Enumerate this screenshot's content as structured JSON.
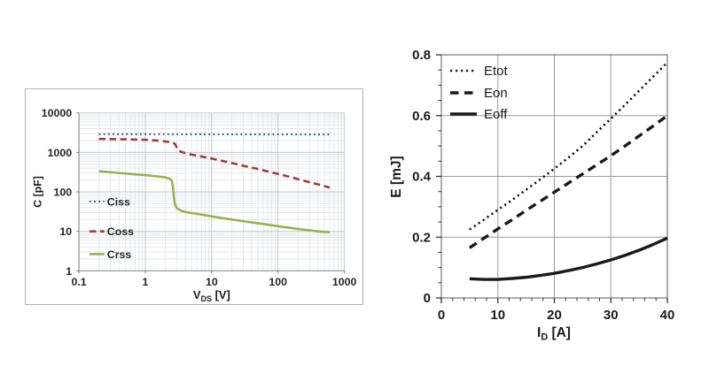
{
  "page": {
    "background": "#ffffff",
    "description": "Two device characteristic charts: parasitic capacitances vs drain-source voltage (log-log) and switching energies vs drain current (linear)"
  },
  "chart_data": [
    {
      "id": "capacitance",
      "type": "line",
      "title": "",
      "xlabel": "V_DS [V]",
      "xlabel_parts": {
        "base": "V",
        "sub": "DS",
        "unit": "[V]"
      },
      "ylabel": "C [pF]",
      "x_scale": "log",
      "y_scale": "log",
      "xlim": [
        0.1,
        1000
      ],
      "ylim": [
        1,
        10000
      ],
      "x_ticks": [
        0.1,
        1,
        10,
        100,
        1000
      ],
      "x_tick_labels": [
        "0.1",
        "1",
        "10",
        "100",
        "1000"
      ],
      "y_ticks": [
        1,
        10,
        100,
        1000,
        10000
      ],
      "y_tick_labels": [
        "1",
        "10",
        "100",
        "1000",
        "10000"
      ],
      "grid": {
        "major": true,
        "minor": true
      },
      "legend_position": "inside-left",
      "colors": {
        "ciss": "#336089",
        "coss": "#A33B38",
        "crss": "#9AAF52"
      },
      "series": [
        {
          "name": "Ciss",
          "dash": "dotted",
          "color": "#336089",
          "width": 2.2,
          "points": [
            [
              0.2,
              2900
            ],
            [
              1,
              2900
            ],
            [
              10,
              2880
            ],
            [
              100,
              2860
            ],
            [
              600,
              2840
            ]
          ]
        },
        {
          "name": "Coss",
          "dash": "dashed",
          "color": "#A33B38",
          "width": 2.6,
          "points": [
            [
              0.2,
              2200
            ],
            [
              0.5,
              2150
            ],
            [
              1,
              2080
            ],
            [
              1.5,
              2000
            ],
            [
              2,
              1900
            ],
            [
              2.5,
              1800
            ],
            [
              2.8,
              1650
            ],
            [
              3.1,
              1150
            ],
            [
              3.5,
              1030
            ],
            [
              4,
              960
            ],
            [
              5,
              880
            ],
            [
              7,
              790
            ],
            [
              10,
              700
            ],
            [
              15,
              600
            ],
            [
              20,
              540
            ],
            [
              30,
              460
            ],
            [
              50,
              380
            ],
            [
              70,
              330
            ],
            [
              100,
              285
            ],
            [
              150,
              240
            ],
            [
              200,
              210
            ],
            [
              300,
              175
            ],
            [
              400,
              155
            ],
            [
              500,
              140
            ],
            [
              600,
              128
            ]
          ]
        },
        {
          "name": "Crss",
          "dash": "solid",
          "color": "#9AAF52",
          "width": 2.6,
          "points": [
            [
              0.2,
              335
            ],
            [
              0.3,
              315
            ],
            [
              0.5,
              292
            ],
            [
              0.7,
              278
            ],
            [
              1,
              265
            ],
            [
              1.5,
              248
            ],
            [
              2,
              233
            ],
            [
              2.3,
              218
            ],
            [
              2.5,
              195
            ],
            [
              2.6,
              140
            ],
            [
              2.7,
              75
            ],
            [
              2.8,
              47
            ],
            [
              3,
              38
            ],
            [
              3.5,
              33
            ],
            [
              4,
              31
            ],
            [
              5,
              29
            ],
            [
              7,
              26.5
            ],
            [
              10,
              24
            ],
            [
              15,
              21.5
            ],
            [
              20,
              20
            ],
            [
              30,
              18
            ],
            [
              50,
              16
            ],
            [
              70,
              14.8
            ],
            [
              100,
              13.5
            ],
            [
              150,
              12.3
            ],
            [
              200,
              11.5
            ],
            [
              300,
              10.6
            ],
            [
              400,
              10
            ],
            [
              500,
              9.7
            ],
            [
              600,
              9.5
            ]
          ]
        }
      ]
    },
    {
      "id": "energy",
      "type": "line",
      "title": "",
      "xlabel": "I_D [A]",
      "xlabel_parts": {
        "base": "I",
        "sub": "D",
        "unit": "[A]"
      },
      "ylabel": "E [mJ]",
      "x_scale": "linear",
      "y_scale": "linear",
      "xlim": [
        0,
        40
      ],
      "ylim": [
        0,
        0.8
      ],
      "x_ticks": [
        0,
        10,
        20,
        30,
        40
      ],
      "x_tick_labels": [
        "0",
        "10",
        "20",
        "30",
        "40"
      ],
      "y_ticks": [
        0,
        0.2,
        0.4,
        0.6,
        0.8
      ],
      "y_tick_labels": [
        "0",
        "0.2",
        "0.4",
        "0.6",
        "0.8"
      ],
      "x_minor_step": 2,
      "y_minor_step": 0.05,
      "grid": {
        "major": true,
        "minor": false
      },
      "legend_position": "inside-top-left",
      "colors": {
        "line": "#1a1a1a",
        "grid": "#9a9a9a"
      },
      "series": [
        {
          "name": "Etot",
          "dash": "dotted",
          "color": "#1a1a1a",
          "width": 2.6,
          "points": [
            [
              5,
              0.225
            ],
            [
              7.5,
              0.257
            ],
            [
              10,
              0.29
            ],
            [
              12.5,
              0.322
            ],
            [
              15,
              0.356
            ],
            [
              17.5,
              0.39
            ],
            [
              20,
              0.425
            ],
            [
              22.5,
              0.462
            ],
            [
              25,
              0.5
            ],
            [
              27.5,
              0.545
            ],
            [
              30,
              0.59
            ],
            [
              32.5,
              0.635
            ],
            [
              35,
              0.682
            ],
            [
              37.5,
              0.728
            ],
            [
              40,
              0.775
            ]
          ]
        },
        {
          "name": "Eon",
          "dash": "dashed",
          "color": "#1a1a1a",
          "width": 3.4,
          "points": [
            [
              5,
              0.165
            ],
            [
              7.5,
              0.196
            ],
            [
              10,
              0.227
            ],
            [
              12.5,
              0.257
            ],
            [
              15,
              0.288
            ],
            [
              17.5,
              0.318
            ],
            [
              20,
              0.348
            ],
            [
              22.5,
              0.378
            ],
            [
              25,
              0.408
            ],
            [
              27.5,
              0.438
            ],
            [
              30,
              0.468
            ],
            [
              32.5,
              0.5
            ],
            [
              35,
              0.533
            ],
            [
              37.5,
              0.566
            ],
            [
              40,
              0.6
            ]
          ]
        },
        {
          "name": "Eoff",
          "dash": "solid",
          "color": "#1a1a1a",
          "width": 3.4,
          "points": [
            [
              5,
              0.063
            ],
            [
              7.5,
              0.061
            ],
            [
              10,
              0.061
            ],
            [
              12.5,
              0.064
            ],
            [
              15,
              0.068
            ],
            [
              17.5,
              0.074
            ],
            [
              20,
              0.081
            ],
            [
              22.5,
              0.09
            ],
            [
              25,
              0.1
            ],
            [
              27.5,
              0.112
            ],
            [
              30,
              0.125
            ],
            [
              32.5,
              0.14
            ],
            [
              35,
              0.157
            ],
            [
              37.5,
              0.176
            ],
            [
              40,
              0.197
            ]
          ]
        }
      ]
    }
  ]
}
